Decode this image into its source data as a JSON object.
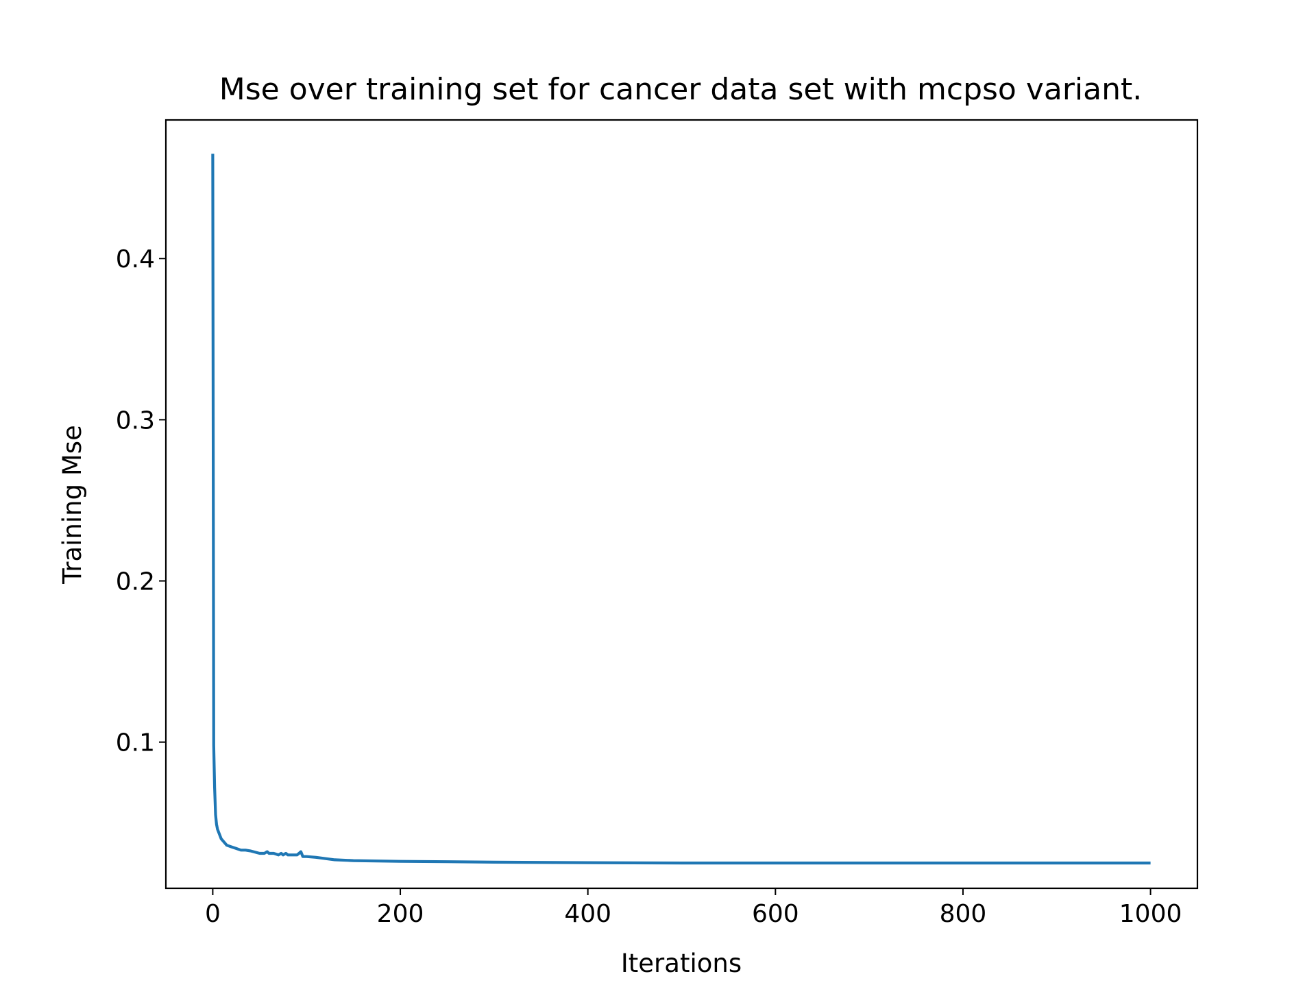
{
  "chart_data": {
    "type": "line",
    "title": "Mse over training set for cancer data set with mcpso variant.",
    "xlabel": "Iterations",
    "ylabel": "Training Mse",
    "xlim": [
      -50,
      1050
    ],
    "ylim": [
      0.0093,
      0.486
    ],
    "xticks": [
      0,
      200,
      400,
      600,
      800,
      1000
    ],
    "yticks": [
      0.1,
      0.2,
      0.3,
      0.4
    ],
    "xtick_labels": [
      "0",
      "200",
      "400",
      "600",
      "800",
      "1000"
    ],
    "ytick_labels": [
      "0.1",
      "0.2",
      "0.3",
      "0.4"
    ],
    "grid": false,
    "colors": {
      "line": "#1f77b4",
      "axes": "#000000",
      "background": "#ffffff"
    },
    "series": [
      {
        "x": [
          0,
          1,
          2,
          3,
          4,
          5,
          7,
          9,
          12,
          15,
          20,
          25,
          30,
          35,
          40,
          50,
          55,
          58,
          60,
          65,
          70,
          73,
          75,
          78,
          80,
          85,
          90,
          92,
          94,
          96,
          98,
          100,
          110,
          130,
          150,
          200,
          250,
          300,
          400,
          500,
          600,
          700,
          800,
          900,
          1000
        ],
        "y": [
          0.465,
          0.098,
          0.072,
          0.055,
          0.049,
          0.046,
          0.043,
          0.04,
          0.038,
          0.036,
          0.035,
          0.034,
          0.033,
          0.033,
          0.0325,
          0.031,
          0.031,
          0.032,
          0.031,
          0.031,
          0.03,
          0.031,
          0.03,
          0.031,
          0.03,
          0.03,
          0.03,
          0.031,
          0.032,
          0.029,
          0.029,
          0.029,
          0.0285,
          0.027,
          0.0265,
          0.026,
          0.0258,
          0.0255,
          0.0252,
          0.025,
          0.025,
          0.025,
          0.025,
          0.025,
          0.025
        ]
      }
    ]
  }
}
